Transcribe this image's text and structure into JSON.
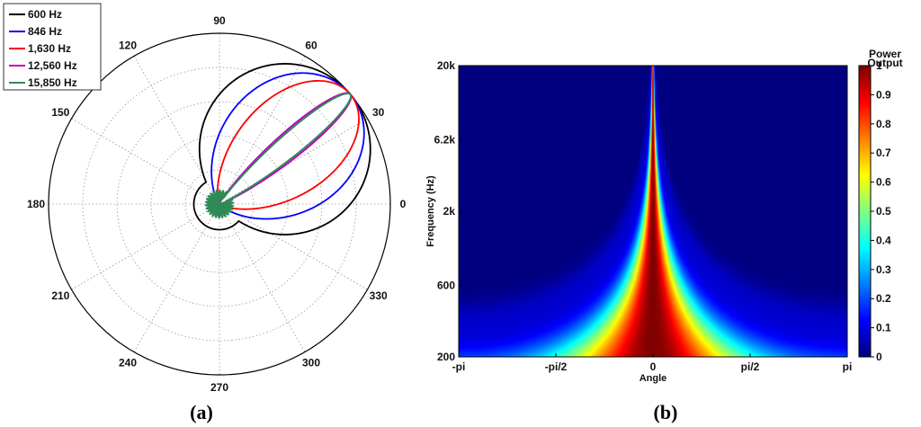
{
  "chart_data": [
    {
      "type": "line",
      "panel_label": "(a)",
      "projection": "polar",
      "r_max": 1.0,
      "angle_ticks": [
        "0",
        "30",
        "60",
        "90",
        "120",
        "150",
        "180",
        "210",
        "240",
        "270",
        "300",
        "330"
      ],
      "grid": true,
      "legend_position": "top-left",
      "series": [
        {
          "name": "600 Hz",
          "color": "#000000",
          "beam_direction_deg": 40,
          "beam_width": 1.0,
          "backlobe_level": 0.15,
          "smooth": true
        },
        {
          "name": "846 Hz",
          "color": "#0000ff",
          "beam_direction_deg": 40,
          "beam_width": 2.0,
          "backlobe_level": 0.05,
          "smooth": true
        },
        {
          "name": "1,630 Hz",
          "color": "#ff0000",
          "beam_direction_deg": 40,
          "beam_width": 4.0,
          "backlobe_level": 0.0,
          "smooth": true
        },
        {
          "name": "12,560 Hz",
          "color": "#c000c0",
          "beam_direction_deg": 40,
          "beam_width": 60.0,
          "backlobe_level": 0.04,
          "smooth": false
        },
        {
          "name": "15,850 Hz",
          "color": "#2e8b57",
          "beam_direction_deg": 40,
          "beam_width": 80.0,
          "backlobe_level": 0.08,
          "smooth": false
        }
      ]
    },
    {
      "type": "heatmap",
      "panel_label": "(b)",
      "xlabel": "Angle",
      "ylabel": "Frequency (Hz)",
      "x_ticks": [
        "-pi",
        "-pi/2",
        "0",
        "pi/2",
        "pi"
      ],
      "y_ticks": [
        "20k",
        "6.2k",
        "2k",
        "600",
        "200"
      ],
      "y_scale": "log",
      "ylim": [
        200,
        20000
      ],
      "colorbar": {
        "label": "Power Output",
        "ticks": [
          "0",
          "0.1",
          "0.2",
          "0.3",
          "0.4",
          "0.5",
          "0.6",
          "0.7",
          "0.8",
          "0.9",
          "1"
        ],
        "range": [
          0,
          1
        ],
        "colormap": "jet"
      }
    }
  ]
}
